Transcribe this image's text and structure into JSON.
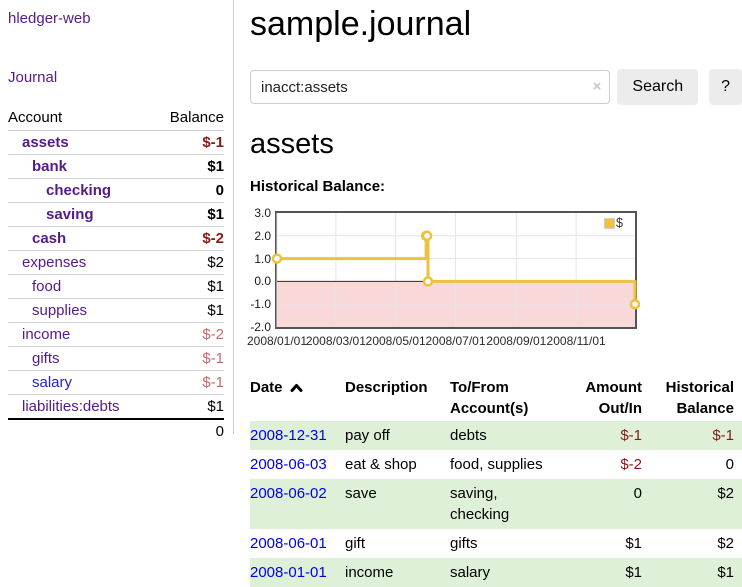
{
  "sidebar": {
    "app_title": "hledger-web",
    "journal_label": "Journal",
    "col_account": "Account",
    "col_balance": "Balance",
    "accounts": [
      {
        "label": "assets",
        "balance": "$-1",
        "level": 1,
        "emphasis": true,
        "balance_class": "neg-strong",
        "link_color": "purple"
      },
      {
        "label": "bank",
        "balance": "$1",
        "level": 2,
        "emphasis": true,
        "balance_class": "",
        "link_color": "purple"
      },
      {
        "label": "checking",
        "balance": "0",
        "level": 3,
        "emphasis": true,
        "balance_class": "",
        "link_color": "purple"
      },
      {
        "label": "saving",
        "balance": "$1",
        "level": 3,
        "emphasis": true,
        "balance_class": "",
        "link_color": "purple"
      },
      {
        "label": "cash",
        "balance": "$-2",
        "level": 2,
        "emphasis": true,
        "balance_class": "neg-strong",
        "link_color": "purple"
      },
      {
        "label": "expenses",
        "balance": "$2",
        "level": 1,
        "emphasis": false,
        "balance_class": "",
        "link_color": "purple"
      },
      {
        "label": "food",
        "balance": "$1",
        "level": 2,
        "emphasis": false,
        "balance_class": "",
        "link_color": "purple"
      },
      {
        "label": "supplies",
        "balance": "$1",
        "level": 2,
        "emphasis": false,
        "balance_class": "",
        "link_color": "purple"
      },
      {
        "label": "income",
        "balance": "$-2",
        "level": 1,
        "emphasis": false,
        "balance_class": "neg-light",
        "link_color": "purple"
      },
      {
        "label": "gifts",
        "balance": "$-1",
        "level": 2,
        "emphasis": false,
        "balance_class": "neg-light",
        "link_color": "purple"
      },
      {
        "label": "salary",
        "balance": "$-1",
        "level": 2,
        "emphasis": false,
        "balance_class": "neg-light",
        "link_color": "blue"
      },
      {
        "label": "liabilities:debts",
        "balance": "$1",
        "level": 1,
        "emphasis": false,
        "balance_class": "",
        "link_color": "purple"
      }
    ],
    "total": "0"
  },
  "main": {
    "title": "sample.journal",
    "search": {
      "value": "inacct:assets",
      "clear": "×",
      "button": "Search",
      "help": "?"
    },
    "heading": "assets",
    "chart_label": "Historical Balance:",
    "sort_icon": "chevron-up"
  },
  "chart_data": {
    "type": "line",
    "line_style": "step",
    "title": "Historical Balance:",
    "xlabel": "",
    "ylabel": "",
    "legend": "$",
    "legend_position": "top-right",
    "grid": true,
    "ylim": [
      -2,
      3
    ],
    "xlim": [
      "2008-01-01",
      "2008-12-31"
    ],
    "y_ticks": [
      {
        "value": 3,
        "label": "3.0"
      },
      {
        "value": 2,
        "label": "2.0"
      },
      {
        "value": 1,
        "label": "1.0"
      },
      {
        "value": 0,
        "label": "0.0"
      },
      {
        "value": -1,
        "label": "-1.0"
      },
      {
        "value": -2,
        "label": "-2.0"
      }
    ],
    "y_gridlines": [
      2,
      1,
      -1
    ],
    "x_ticks": [
      {
        "date": "2008-01-01",
        "label": "2008/01/01"
      },
      {
        "date": "2008-03-01",
        "label": "2008/03/01"
      },
      {
        "date": "2008-05-01",
        "label": "2008/05/01"
      },
      {
        "date": "2008-07-01",
        "label": "2008/07/01"
      },
      {
        "date": "2008-09-01",
        "label": "2008/09/01"
      },
      {
        "date": "2008-11-01",
        "label": "2008/11/01"
      }
    ],
    "series": [
      {
        "name": "$",
        "points": [
          [
            "2008-01-01",
            1
          ],
          [
            "2008-06-01",
            2
          ],
          [
            "2008-06-02",
            2
          ],
          [
            "2008-06-03",
            0
          ],
          [
            "2008-12-31",
            -1
          ]
        ]
      }
    ],
    "colors": {
      "line": "#edc240",
      "marker_fill": "#ffffff",
      "negative_fill": "#f8d8d8",
      "zero_line": "#900000",
      "grid": "#e6e6e6",
      "border": "#545454"
    }
  },
  "register": {
    "columns": [
      "Date",
      "Description",
      "To/From Account(s)",
      "Amount Out/In",
      "Historical Balance"
    ],
    "rows": [
      {
        "date": "2008-12-31",
        "description": "pay off",
        "accounts": "debts",
        "amount": "$-1",
        "balance": "$-1",
        "amount_negative": true,
        "balance_negative": true,
        "shaded": true
      },
      {
        "date": "2008-06-03",
        "description": "eat & shop",
        "accounts": "food, supplies",
        "amount": "$-2",
        "balance": "0",
        "amount_negative": true,
        "balance_negative": false,
        "shaded": false
      },
      {
        "date": "2008-06-02",
        "description": "save",
        "accounts": "saving, checking",
        "amount": "0",
        "balance": "$2",
        "amount_negative": false,
        "balance_negative": false,
        "shaded": true
      },
      {
        "date": "2008-06-01",
        "description": "gift",
        "accounts": "gifts",
        "amount": "$1",
        "balance": "$2",
        "amount_negative": false,
        "balance_negative": false,
        "shaded": false
      },
      {
        "date": "2008-01-01",
        "description": "income",
        "accounts": "salary",
        "amount": "$1",
        "balance": "$1",
        "amount_negative": false,
        "balance_negative": false,
        "shaded": true
      }
    ]
  }
}
